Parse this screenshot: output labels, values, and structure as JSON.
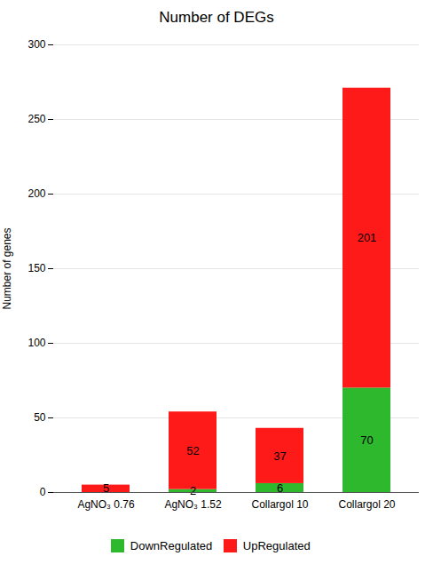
{
  "chart_data": {
    "type": "bar",
    "stacked": true,
    "title": "Number of DEGs",
    "ylabel": "Number of genes",
    "categories": [
      "AgNO₃ 0.76",
      "AgNO₃ 1.52",
      "Collargol 10",
      "Collargol 20"
    ],
    "series": [
      {
        "name": "DownRegulated",
        "color": "#2db82d",
        "values": [
          0,
          2,
          6,
          70
        ],
        "value_labels": [
          null,
          "2",
          "6",
          "70"
        ]
      },
      {
        "name": "UpRegulated",
        "color": "#ff1a1a",
        "values": [
          5,
          52,
          37,
          201
        ]
      }
    ],
    "ylim": [
      0,
      300
    ],
    "yticks": [
      0,
      50,
      100,
      150,
      200,
      250,
      300
    ],
    "grid": true,
    "data_labels": true,
    "legend": "bottom"
  }
}
